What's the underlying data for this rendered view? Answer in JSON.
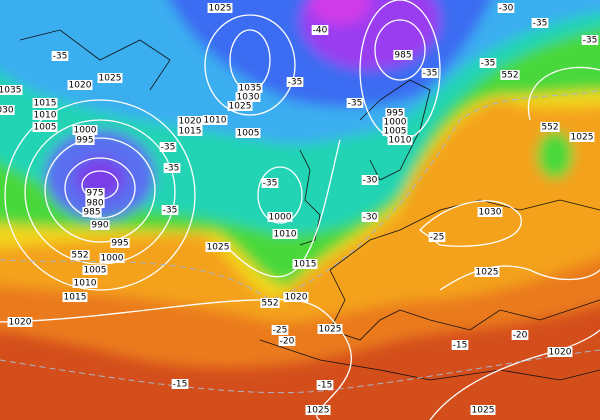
{
  "labels": [
    "1025",
    "1035",
    "030",
    "1020",
    "1025",
    "1015",
    "1010",
    "1005",
    "1000",
    "995",
    "975",
    "980",
    "985",
    "990",
    "995",
    "1000",
    "1005",
    "1010",
    "1015",
    "1020",
    "1025",
    "1035",
    "1030",
    "1025",
    "1020",
    "1015",
    "1010",
    "1005",
    "1000",
    "1010",
    "1015",
    "1020",
    "1025",
    "1025",
    "1025",
    "1025",
    "1030",
    "1020",
    "1025",
    "995",
    "1000",
    "1005",
    "1010",
    "985",
    "-35",
    "-35",
    "-30",
    "-30",
    "-25",
    "-20",
    "-15",
    "-25",
    "-20",
    "-15",
    "-15",
    "552",
    "552",
    "552",
    "552",
    "-30",
    "-35",
    "-35",
    "-35",
    "-35",
    "-40",
    "-35",
    "-35",
    "-35",
    "-35",
    "-35"
  ]
}
